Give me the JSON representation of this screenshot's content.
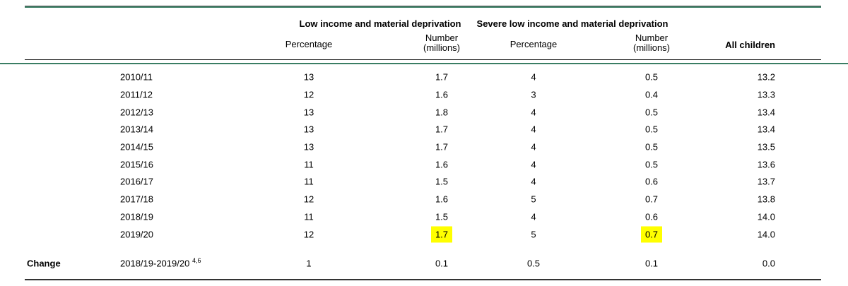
{
  "page": {
    "background": "#ffffff",
    "rule_green_color": "#3a7e64",
    "rule_dark_color": "#333333",
    "highlight_color": "#ffff00"
  },
  "table": {
    "groups": {
      "low_income": "Low income and material deprivation",
      "severe": "Severe low income and material deprivation"
    },
    "subheaders": {
      "percentage_low": "Percentage",
      "number_low_line1": "Number",
      "number_low_line2": "(millions)",
      "percentage_severe": "Percentage",
      "number_severe_line1": "Number",
      "number_severe_line2": "(millions)",
      "all_children": "All children"
    },
    "rows": [
      {
        "year": "2010/11",
        "li_pct": "13",
        "li_num": "1.7",
        "sli_pct": "4",
        "sli_num": "0.5",
        "all": "13.2"
      },
      {
        "year": "2011/12",
        "li_pct": "12",
        "li_num": "1.6",
        "sli_pct": "3",
        "sli_num": "0.4",
        "all": "13.3"
      },
      {
        "year": "2012/13",
        "li_pct": "13",
        "li_num": "1.8",
        "sli_pct": "4",
        "sli_num": "0.5",
        "all": "13.4"
      },
      {
        "year": "2013/14",
        "li_pct": "13",
        "li_num": "1.7",
        "sli_pct": "4",
        "sli_num": "0.5",
        "all": "13.4"
      },
      {
        "year": "2014/15",
        "li_pct": "13",
        "li_num": "1.7",
        "sli_pct": "4",
        "sli_num": "0.5",
        "all": "13.5"
      },
      {
        "year": "2015/16",
        "li_pct": "11",
        "li_num": "1.6",
        "sli_pct": "4",
        "sli_num": "0.5",
        "all": "13.6"
      },
      {
        "year": "2016/17",
        "li_pct": "11",
        "li_num": "1.5",
        "sli_pct": "4",
        "sli_num": "0.6",
        "all": "13.7"
      },
      {
        "year": "2017/18",
        "li_pct": "12",
        "li_num": "1.6",
        "sli_pct": "5",
        "sli_num": "0.7",
        "all": "13.8"
      },
      {
        "year": "2018/19",
        "li_pct": "11",
        "li_num": "1.5",
        "sli_pct": "4",
        "sli_num": "0.6",
        "all": "14.0"
      },
      {
        "year": "2019/20",
        "li_pct": "12",
        "li_num": "1.7",
        "sli_pct": "5",
        "sli_num": "0.7",
        "all": "14.0",
        "highlighted": [
          "li_num",
          "sli_num"
        ]
      }
    ],
    "change": {
      "label": "Change",
      "period": "2018/19-2019/20",
      "footnote_marker": "4,6",
      "li_pct": "1",
      "li_num": "0.1",
      "sli_pct": "0.5",
      "sli_num": "0.1",
      "all": "0.0"
    }
  }
}
